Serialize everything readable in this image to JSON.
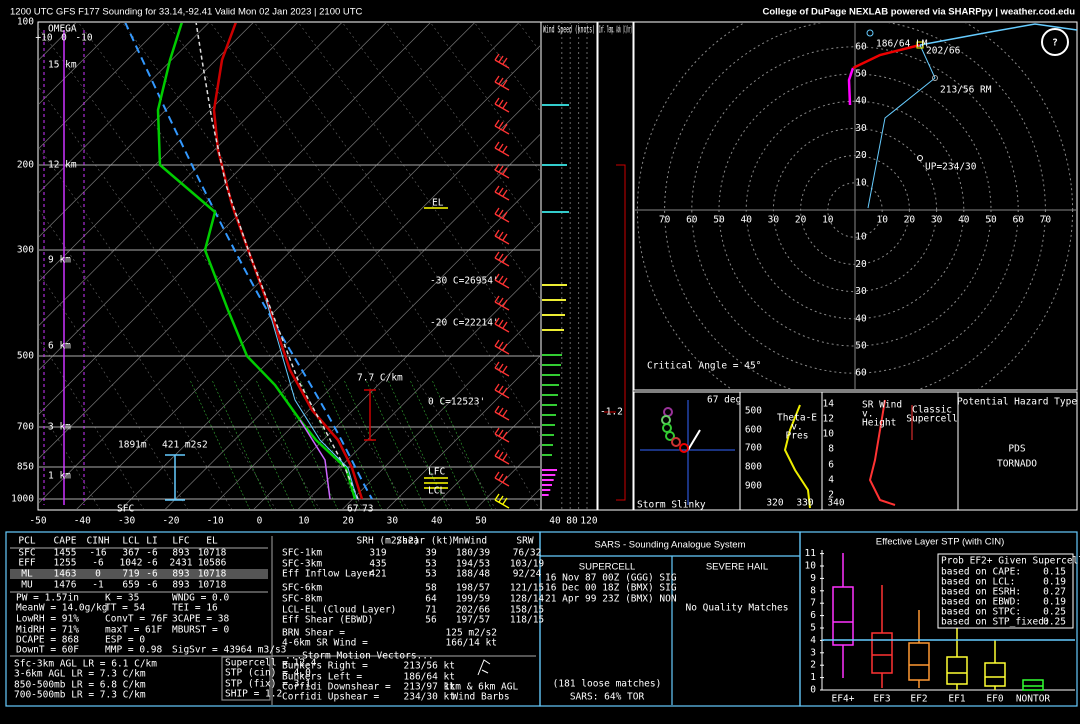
{
  "header": {
    "title": "1200 UTC GFS F177 Sounding for 33.14,-92.41 Valid  Mon 02 Jan 2023 | 2100 UTC",
    "credit": "College of DuPage NEXLAB powered via SHARPpy | weather.cod.edu"
  },
  "skewt": {
    "pressure_labels": [
      "100",
      "200",
      "300",
      "500",
      "700",
      "850",
      "1000"
    ],
    "temp_labels": [
      "-50",
      "-40",
      "-30",
      "-20",
      "-10",
      "0",
      "10",
      "20",
      "30",
      "40",
      "50"
    ],
    "omega": "OMEGA",
    "omega_scale": [
      "+10",
      "0",
      "-10"
    ],
    "heights": [
      "15 km",
      "12 km",
      "9 km",
      "6 km",
      "3 km",
      "1 km"
    ],
    "el": "EL",
    "t30": "-30 C=26954'",
    "t20": "-20 C=22214'",
    "lapse": "7.7 C/km",
    "t0": "0 C=12523'",
    "lfc": "LFC",
    "lcl": "LCL",
    "eff_depth": "1891m",
    "eff_srh": "421 m2s2",
    "sfc": "SFC",
    "sfc_td": "67",
    "sfc_t": "73"
  },
  "wind_panel": {
    "title": "Wind Speed (knots)",
    "labels": [
      "40",
      "80",
      "120"
    ]
  },
  "temp_adv": {
    "title": "Inf. Temp. Adv (C/hr)",
    "label": "-1.2"
  },
  "hodograph": {
    "ring_labels": [
      "10",
      "20",
      "30",
      "40",
      "50",
      "60",
      "70"
    ],
    "lm": "186/64 LM",
    "mean": "202/66",
    "rm": "213/56 RM",
    "up": "UP=234/30",
    "critical": "Critical Angle = 45°",
    "help": "?"
  },
  "slinky": {
    "angle": "67 deg",
    "title": "Storm Slinky"
  },
  "theta": {
    "title": [
      "Theta-E",
      "v.",
      "Pres"
    ],
    "y_labels": [
      "500",
      "600",
      "700",
      "800",
      "900"
    ],
    "x_labels": [
      "320",
      "330",
      "340"
    ]
  },
  "srwind": {
    "title": [
      "SR Wind",
      "v.",
      "Height"
    ],
    "type": [
      "Classic",
      "Supercell"
    ],
    "y_labels": [
      "14",
      "12",
      "10",
      "8",
      "6",
      "4",
      "2"
    ]
  },
  "hazard": {
    "title": "Potential Hazard Type",
    "lines": [
      "PDS",
      "TORNADO"
    ]
  },
  "thermo": {
    "header": [
      "PCL",
      "CAPE",
      "CINH",
      "LCL",
      "LI",
      "LFC",
      "EL"
    ],
    "rows": [
      [
        "SFC",
        "1455",
        "-16",
        "367",
        "-6",
        "893",
        "10718"
      ],
      [
        "EFF",
        "1255",
        "-6",
        "1042",
        "-6",
        "2431",
        "10586"
      ],
      [
        "ML",
        "1463",
        "0",
        "719",
        "-6",
        "893",
        "10718"
      ],
      [
        "MU",
        "1476",
        "-1",
        "659",
        "-6",
        "893",
        "10718"
      ]
    ],
    "indices": [
      [
        "PW = 1.57in",
        "K = 35",
        "WNDG = 0.0"
      ],
      [
        "MeanW = 14.0g/kg",
        "TT = 54",
        "TEI = 16"
      ],
      [
        "LowRH = 91%",
        "ConvT = 76F",
        "3CAPE = 38"
      ],
      [
        "MidRH = 71%",
        "maxT = 61F",
        "MBURST = 0"
      ],
      [
        "DCAPE = 868",
        "ESP = 0"
      ],
      [
        "DownT = 60F",
        "MMP = 0.98",
        "SigSvr = 43964 m3/s3"
      ]
    ],
    "lapse_rates": [
      "Sfc-3km AGL LR = 6.1 C/km",
      "3-6km AGL LR = 7.3 C/km",
      "850-500mb LR = 6.8 C/km",
      "700-500mb LR = 7.3 C/km"
    ],
    "composite": [
      "Supercell = 12.4",
      "STP (cin) = 4.0",
      "STP (fix) = 3.1",
      "SHIP = 1.2"
    ]
  },
  "kinematic": {
    "header": [
      "SRH (m2/s2)",
      "Shear (kt)",
      "MnWind",
      "SRW"
    ],
    "rows": [
      {
        "label": "SFC-1km",
        "srh": "319",
        "shear": "39",
        "mnwind": "180/39",
        "srw": "76/32"
      },
      {
        "label": "SFC-3km",
        "srh": "435",
        "shear": "53",
        "mnwind": "194/53",
        "srw": "103/19"
      },
      {
        "label": "Eff Inflow Layer",
        "srh": "421",
        "shear": "53",
        "mnwind": "188/48",
        "srw": "92/24"
      },
      {
        "label": "SFC-6km",
        "shear": "58",
        "mnwind": "198/57",
        "srw": "121/15"
      },
      {
        "label": "SFC-8km",
        "shear": "64",
        "mnwind": "199/59",
        "srw": "128/14"
      },
      {
        "label": "LCL-EL (Cloud Layer)",
        "shear": "71",
        "mnwind": "202/66",
        "srw": "158/15"
      },
      {
        "label": "Eff Shear (EBWD)",
        "shear": "56",
        "mnwind": "197/57",
        "srw": "118/15"
      }
    ],
    "extra": [
      [
        "BRN Shear =",
        "125 m2/s2"
      ],
      [
        "4-6km SR Wind =",
        "166/14 kt"
      ]
    ],
    "motion_title": "...Storm Motion Vectors...",
    "motion": [
      [
        "Bunkers Right =",
        "213/56 kt"
      ],
      [
        "Bunkers Left =",
        "186/64 kt"
      ],
      [
        "Corfidi Downshear =",
        "213/97 kt"
      ],
      [
        "Corfidi Upshear =",
        "234/30 kt"
      ]
    ],
    "barbs_caption": [
      "1km & 6km AGL",
      "Wind Barbs"
    ]
  },
  "sars": {
    "title": "SARS - Sounding Analogue System",
    "supercell": "SUPERCELL",
    "hail": "SEVERE HAIL",
    "matches": [
      "16 Nov 87 00Z (GGG) SIG",
      "16 Dec 00 18Z (BMX) SIG",
      "21 Apr 99 23Z (BMX)  NON"
    ],
    "hail_matches": "No Quality Matches",
    "loose": "(181 loose matches)",
    "tor": "SARS: 64% TOR"
  },
  "stp": {
    "title": "Effective Layer STP (with CIN)",
    "yticks": [
      "0",
      "1",
      "2",
      "3",
      "4",
      "5",
      "6",
      "7",
      "8",
      "9",
      "10",
      "11"
    ],
    "categories": [
      "EF4+",
      "EF3",
      "EF2",
      "EF1",
      "EF0",
      "NONTOR"
    ],
    "prob_title": "Prob EF2+ Given Supercell",
    "prob": [
      [
        "based on CAPE:",
        "0.15"
      ],
      [
        "based on LCL:",
        "0.19"
      ],
      [
        "based on ESRH:",
        "0.27"
      ],
      [
        "based on EBWD:",
        "0.19"
      ],
      [
        "based on STPC:",
        "0.25"
      ],
      [
        "based on STP_fixed:",
        "0.25"
      ]
    ]
  }
}
